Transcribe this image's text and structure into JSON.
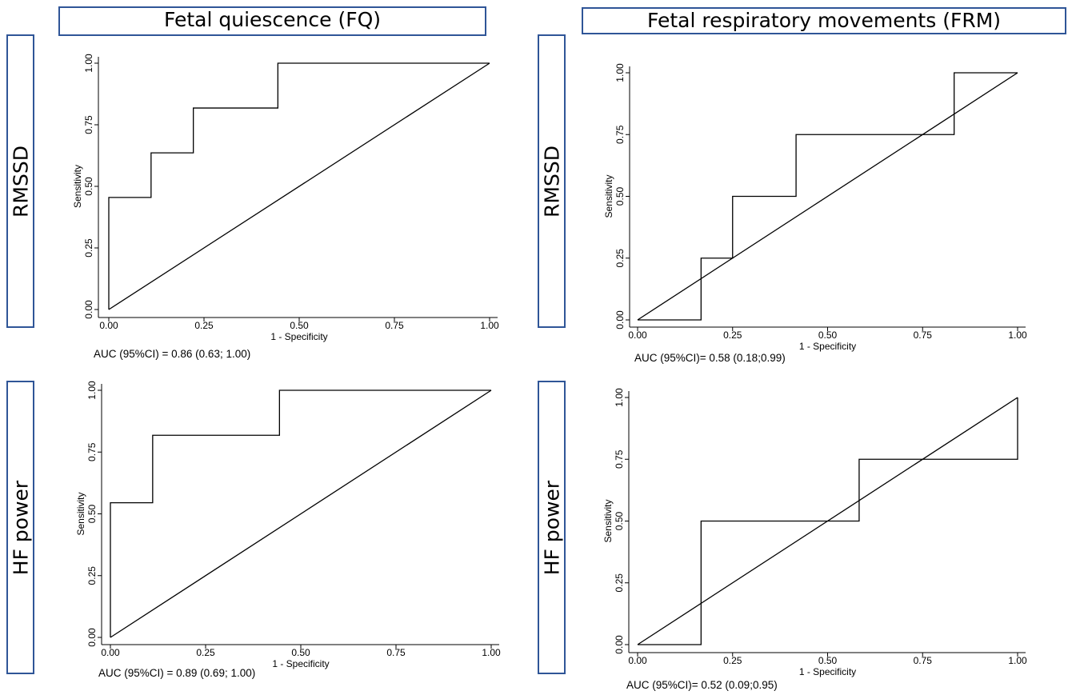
{
  "headers": {
    "fq": "Fetal quiescence (FQ)",
    "frm": "Fetal respiratory movements (FRM)"
  },
  "row_labels": {
    "r1_left": "RMSSD",
    "r2_left": "HF power",
    "r1_right": "RMSSD",
    "r2_right": "HF power"
  },
  "colors": {
    "border": "#2f5597",
    "line": "#000000",
    "axis": "#000000"
  },
  "chart_data": [
    {
      "type": "line",
      "xlabel": "1 - Specificity",
      "ylabel": "Sensitivity",
      "xlim": [
        0,
        1
      ],
      "ylim": [
        0,
        1
      ],
      "xticks": [
        "0.00",
        "0.25",
        "0.50",
        "0.75",
        "1.00"
      ],
      "yticks": [
        "0.00",
        "0.25",
        "0.50",
        "0.75",
        "1.00"
      ],
      "grid": false,
      "annotation": "AUC (95%CI) = 0.86 (0.63; 1.00)",
      "series": [
        {
          "values": [
            [
              0,
              0
            ],
            [
              0,
              0.455
            ],
            [
              0.111,
              0.455
            ],
            [
              0.111,
              0.636
            ],
            [
              0.222,
              0.636
            ],
            [
              0.222,
              0.818
            ],
            [
              0.444,
              0.818
            ],
            [
              0.444,
              1
            ],
            [
              1,
              1
            ]
          ]
        },
        {
          "values": [
            [
              0,
              0
            ],
            [
              1,
              1
            ]
          ]
        }
      ]
    },
    {
      "type": "line",
      "xlabel": "1 - Specificity",
      "ylabel": "Sensitivity",
      "xlim": [
        0,
        1
      ],
      "ylim": [
        0,
        1
      ],
      "xticks": [
        "0.00",
        "0.25",
        "0.50",
        "0.75",
        "1.00"
      ],
      "yticks": [
        "0.00",
        "0.25",
        "0.50",
        "0.75",
        "1.00"
      ],
      "grid": false,
      "annotation": "AUC (95%CI)= 0.58 (0.18;0.99)",
      "series": [
        {
          "values": [
            [
              0,
              0
            ],
            [
              0.167,
              0
            ],
            [
              0.167,
              0.25
            ],
            [
              0.25,
              0.25
            ],
            [
              0.25,
              0.5
            ],
            [
              0.417,
              0.5
            ],
            [
              0.417,
              0.75
            ],
            [
              0.833,
              0.75
            ],
            [
              0.833,
              1
            ],
            [
              1,
              1
            ]
          ]
        },
        {
          "values": [
            [
              0,
              0
            ],
            [
              1,
              1
            ]
          ]
        }
      ]
    },
    {
      "type": "line",
      "xlabel": "1 - Specificity",
      "ylabel": "Sensitivity",
      "xlim": [
        0,
        1
      ],
      "ylim": [
        0,
        1
      ],
      "xticks": [
        "0.00",
        "0.25",
        "0.50",
        "0.75",
        "1.00"
      ],
      "yticks": [
        "0.00",
        "0.25",
        "0.50",
        "0.75",
        "1.00"
      ],
      "grid": false,
      "annotation": "AUC (95%CI) = 0.89 (0.69; 1.00)",
      "series": [
        {
          "values": [
            [
              0,
              0
            ],
            [
              0,
              0.545
            ],
            [
              0.111,
              0.545
            ],
            [
              0.111,
              0.818
            ],
            [
              0.444,
              0.818
            ],
            [
              0.444,
              1
            ],
            [
              1,
              1
            ]
          ]
        },
        {
          "values": [
            [
              0,
              0
            ],
            [
              1,
              1
            ]
          ]
        }
      ]
    },
    {
      "type": "line",
      "xlabel": "1 - Specificity",
      "ylabel": "Sensitivity",
      "xlim": [
        0,
        1
      ],
      "ylim": [
        0,
        1
      ],
      "xticks": [
        "0.00",
        "0.25",
        "0.50",
        "0.75",
        "1.00"
      ],
      "yticks": [
        "0.00",
        "0.25",
        "0.50",
        "0.75",
        "1.00"
      ],
      "grid": false,
      "annotation": "AUC (95%CI)= 0.52 (0.09;0.95)",
      "series": [
        {
          "values": [
            [
              0,
              0
            ],
            [
              0.167,
              0
            ],
            [
              0.167,
              0.5
            ],
            [
              0.583,
              0.5
            ],
            [
              0.583,
              0.75
            ],
            [
              1,
              0.75
            ],
            [
              1,
              1
            ]
          ]
        },
        {
          "values": [
            [
              0,
              0
            ],
            [
              1,
              1
            ]
          ]
        }
      ]
    }
  ]
}
